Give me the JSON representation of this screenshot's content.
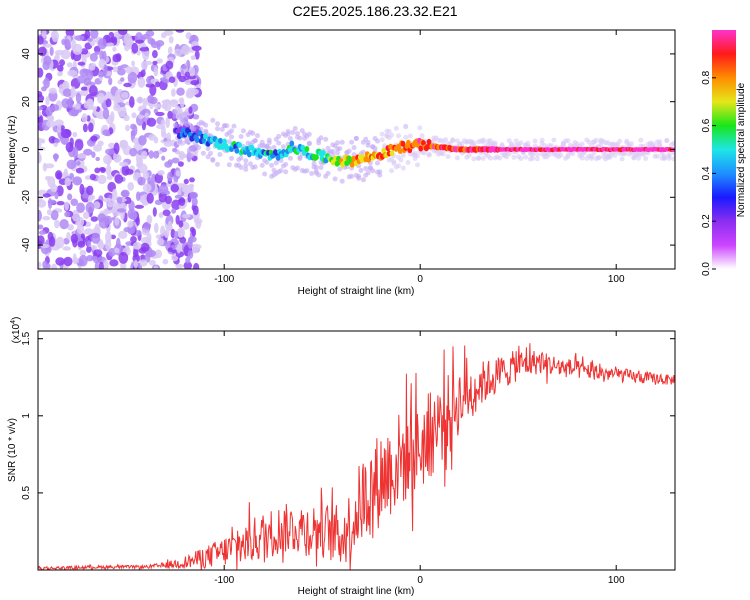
{
  "title": "C2E5.2025.186.23.32.E21",
  "colormap": [
    "#ffffff",
    "#d9c9f5",
    "#8a3df0",
    "#2a2ae0",
    "#1c8cf0",
    "#1ee6e6",
    "#19e619",
    "#e6e619",
    "#ff8c00",
    "#ff1a1a",
    "#ff33cc"
  ],
  "line_color": "#ee3333",
  "chart_data": [
    {
      "type": "heatmap",
      "xlabel": "Height of straight line (km)",
      "ylabel": "Frequency (Hz)",
      "xlim": [
        -195,
        130
      ],
      "ylim": [
        -50,
        50
      ],
      "xticks": [
        -100,
        0,
        100
      ],
      "yticks": [
        -40,
        -20,
        0,
        20,
        40
      ],
      "colorbar": {
        "label": "Normalized spectral amplitude",
        "range": [
          0,
          1
        ],
        "ticks": [
          0.0,
          0.2,
          0.4,
          0.6,
          0.8
        ]
      },
      "noise_region_x": [
        -195,
        -117
      ],
      "ridge": {
        "x": [
          -125,
          -115,
          -105,
          -95,
          -85,
          -75,
          -65,
          -55,
          -45,
          -38,
          -30,
          -20,
          -10,
          0,
          10,
          20,
          30,
          45,
          60,
          75,
          90,
          105,
          120,
          130
        ],
        "y": [
          7,
          6,
          3,
          1,
          -1,
          -3,
          1,
          -2,
          -4,
          -5,
          -4,
          -2,
          1,
          2,
          1,
          0,
          0,
          0,
          0,
          0,
          0,
          0,
          0,
          0
        ],
        "amplitude": [
          0.25,
          0.35,
          0.45,
          0.45,
          0.45,
          0.45,
          0.5,
          0.5,
          0.55,
          0.7,
          0.75,
          0.8,
          0.85,
          0.9,
          0.9,
          0.95,
          0.95,
          1,
          1,
          1,
          1,
          1,
          1,
          1
        ]
      }
    },
    {
      "type": "line",
      "xlabel": "Height of straight line (km)",
      "ylabel": "SNR (10 * v/v)",
      "scale_label": "(x10",
      "scale_exponent": "4",
      "scale_label_close": ")",
      "xlim": [
        -195,
        130
      ],
      "ylim": [
        0,
        1.55
      ],
      "xticks": [
        -100,
        0,
        100
      ],
      "yticks": [
        0.5,
        1.0,
        1.5
      ],
      "series": [
        {
          "x": [
            -195,
            -160,
            -140,
            -130,
            -120,
            -110,
            -100,
            -90,
            -80,
            -70,
            -60,
            -50,
            -40,
            -35,
            -30,
            -20,
            -10,
            0,
            10,
            20,
            30,
            40,
            50,
            60,
            70,
            80,
            90,
            100,
            110,
            120,
            130
          ],
          "y": [
            0.01,
            0.02,
            0.02,
            0.03,
            0.05,
            0.08,
            0.12,
            0.17,
            0.22,
            0.27,
            0.27,
            0.26,
            0.22,
            0.3,
            0.45,
            0.6,
            0.72,
            0.8,
            0.95,
            1.1,
            1.2,
            1.27,
            1.33,
            1.35,
            1.32,
            1.3,
            1.28,
            1.27,
            1.25,
            1.24,
            1.23
          ],
          "noise": [
            0.01,
            0.01,
            0.01,
            0.02,
            0.04,
            0.07,
            0.1,
            0.14,
            0.16,
            0.16,
            0.17,
            0.18,
            0.2,
            0.25,
            0.28,
            0.32,
            0.32,
            0.3,
            0.28,
            0.22,
            0.15,
            0.12,
            0.1,
            0.08,
            0.07,
            0.06,
            0.05,
            0.05,
            0.04,
            0.04,
            0.03
          ]
        }
      ]
    }
  ]
}
